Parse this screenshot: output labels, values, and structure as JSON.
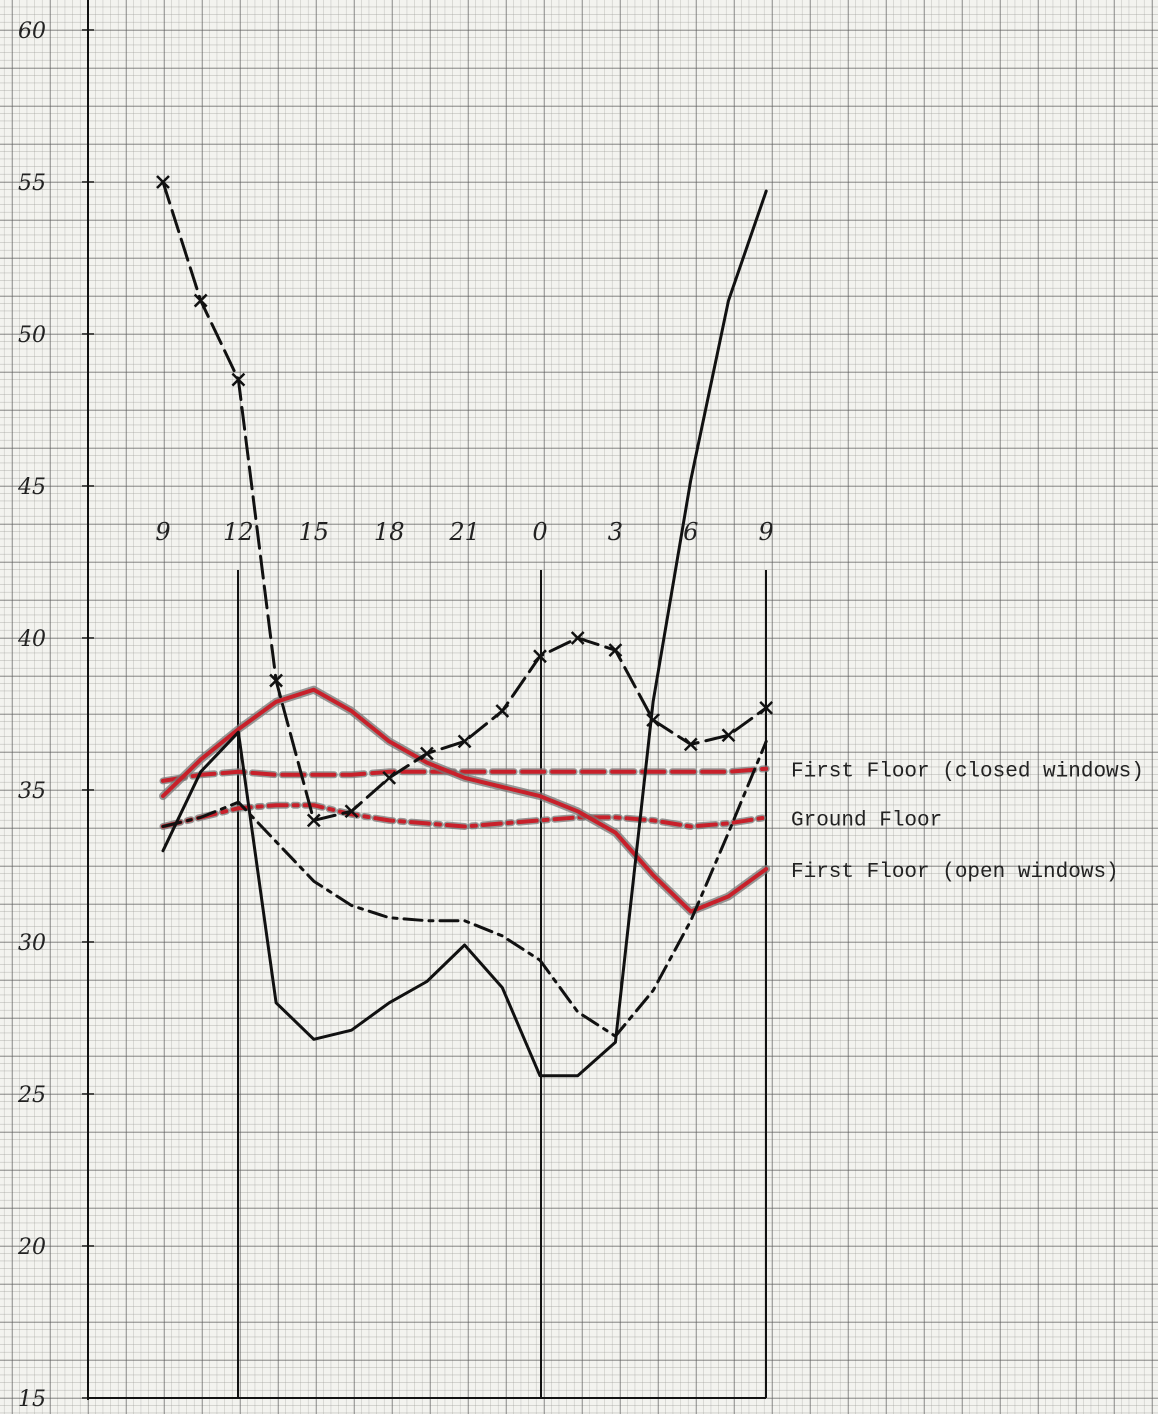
{
  "chart_data": {
    "type": "line",
    "categories": [
      "9",
      null,
      "12",
      null,
      "15",
      null,
      "18",
      null,
      "21",
      null,
      "0",
      null,
      "3",
      null,
      "6",
      null,
      "9"
    ],
    "ylim": [
      15,
      60
    ],
    "yticks": [
      15,
      20,
      25,
      30,
      35,
      40,
      45,
      50,
      55,
      60
    ],
    "series": [
      {
        "name": "First Floor (closed windows)",
        "color": "#c8202a",
        "style": "dashed",
        "values": [
          35.3,
          35.5,
          35.6,
          35.5,
          35.5,
          35.5,
          35.6,
          35.6,
          35.6,
          35.6,
          35.6,
          35.6,
          35.6,
          35.6,
          35.6,
          35.6,
          35.7
        ]
      },
      {
        "name": "Ground Floor",
        "color": "#c8202a",
        "style": "dashdot",
        "values": [
          33.8,
          34.1,
          34.4,
          34.5,
          34.5,
          34.2,
          34.0,
          33.9,
          33.8,
          33.9,
          34.0,
          34.1,
          34.1,
          34.0,
          33.8,
          33.9,
          34.1
        ]
      },
      {
        "name": "First Floor (open windows)",
        "color": "#c8202a",
        "style": "solid",
        "values": [
          34.8,
          36.0,
          37.0,
          37.9,
          38.3,
          37.6,
          36.6,
          35.9,
          35.4,
          35.1,
          34.8,
          34.3,
          33.6,
          32.2,
          31.0,
          31.5,
          32.4
        ]
      },
      {
        "color": "#111111",
        "style": "dashed",
        "marker": "x",
        "values": [
          55.0,
          51.1,
          48.5,
          38.6,
          34.0,
          34.3,
          35.4,
          36.2,
          36.6,
          37.6,
          39.4,
          40.0,
          39.6,
          37.3,
          36.5,
          36.8,
          37.7
        ]
      },
      {
        "color": "#111111",
        "style": "solid",
        "values": [
          33.0,
          35.6,
          36.9,
          28.0,
          26.8,
          27.1,
          28.0,
          28.7,
          29.9,
          28.5,
          25.6,
          25.6,
          26.7,
          37.9,
          45.2,
          51.1,
          54.7
        ]
      },
      {
        "color": "#111111",
        "style": "dashdot",
        "values": [
          33.8,
          34.1,
          34.6,
          33.3,
          32.0,
          31.2,
          30.8,
          30.7,
          30.7,
          30.2,
          29.4,
          27.7,
          26.9,
          28.4,
          30.7,
          33.6,
          36.6
        ]
      }
    ]
  }
}
